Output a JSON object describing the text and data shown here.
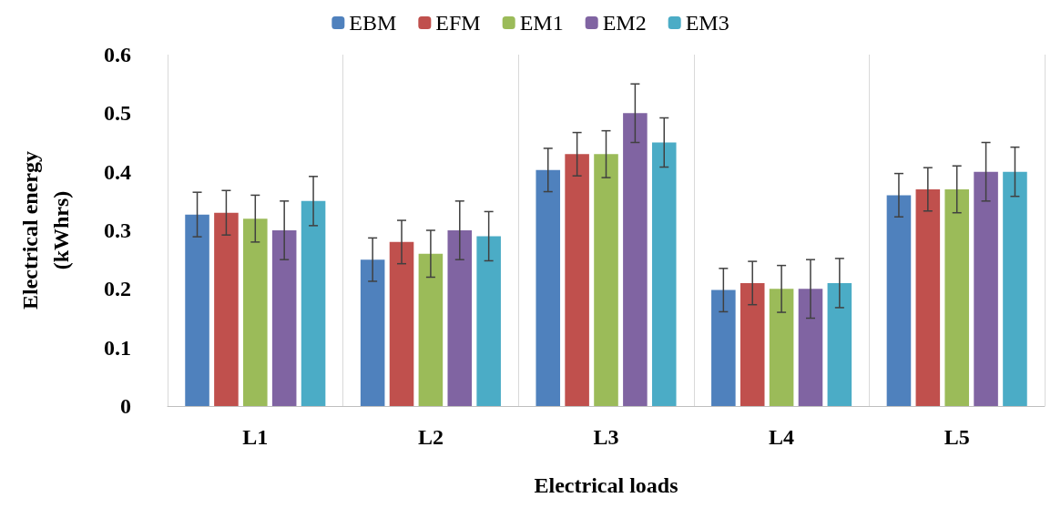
{
  "chart_data": {
    "type": "bar",
    "xlabel": "Electrical loads",
    "ylabel": "Electrical energy\n(kWhrs)",
    "categories": [
      "L1",
      "L2",
      "L3",
      "L4",
      "L5"
    ],
    "series": [
      {
        "name": "EBM",
        "color": "#4f81bd",
        "values": [
          0.327,
          0.25,
          0.403,
          0.198,
          0.36
        ],
        "errors": [
          0.038,
          0.037,
          0.037,
          0.037,
          0.037
        ]
      },
      {
        "name": "EFM",
        "color": "#c0504d",
        "values": [
          0.33,
          0.28,
          0.43,
          0.21,
          0.37
        ],
        "errors": [
          0.038,
          0.037,
          0.037,
          0.037,
          0.037
        ]
      },
      {
        "name": "EM1",
        "color": "#9bbb59",
        "values": [
          0.32,
          0.26,
          0.43,
          0.2,
          0.37
        ],
        "errors": [
          0.04,
          0.04,
          0.04,
          0.04,
          0.04
        ]
      },
      {
        "name": "EM2",
        "color": "#8064a2",
        "values": [
          0.3,
          0.3,
          0.5,
          0.2,
          0.4
        ],
        "errors": [
          0.05,
          0.05,
          0.05,
          0.05,
          0.05
        ]
      },
      {
        "name": "EM3",
        "color": "#4bacc6",
        "values": [
          0.35,
          0.29,
          0.45,
          0.21,
          0.4
        ],
        "errors": [
          0.042,
          0.042,
          0.042,
          0.042,
          0.042
        ]
      }
    ],
    "ylim": [
      0,
      0.6
    ],
    "yticks": [
      0,
      0.1,
      0.2,
      0.3,
      0.4,
      0.5,
      0.6
    ],
    "grid": "x",
    "legend": "top"
  }
}
